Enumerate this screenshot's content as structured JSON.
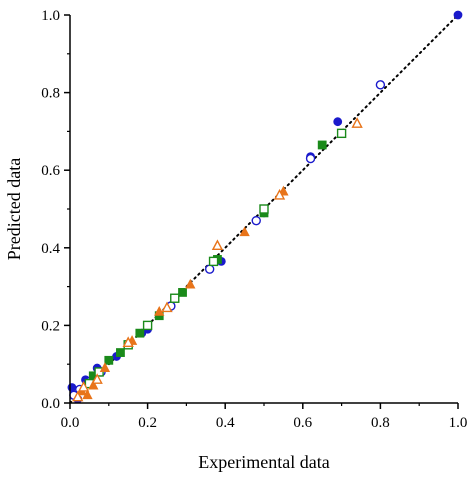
{
  "chart_data": {
    "type": "scatter",
    "title": "",
    "xlabel": "Experimental data",
    "ylabel": "Predicted data",
    "xlim": [
      0,
      1
    ],
    "ylim": [
      0,
      1
    ],
    "xticks": [
      "0.0",
      "0.2",
      "0.4",
      "0.6",
      "0.8",
      "1.0"
    ],
    "yticks": [
      "0.0",
      "0.2",
      "0.4",
      "0.6",
      "0.8",
      "1.0"
    ],
    "grid": false,
    "legend": "none",
    "reference_line": {
      "style": "dotted",
      "color": "#000000",
      "x": [
        0,
        1
      ],
      "y": [
        0,
        1
      ]
    },
    "series": [
      {
        "marker": "circle-filled",
        "color": "#1a1acc",
        "points": [
          [
            0.005,
            0.04
          ],
          [
            0.02,
            0.01
          ],
          [
            0.04,
            0.06
          ],
          [
            0.07,
            0.09
          ],
          [
            0.12,
            0.12
          ],
          [
            0.185,
            0.18
          ],
          [
            0.2,
            0.19
          ],
          [
            0.39,
            0.365
          ],
          [
            0.5,
            0.49
          ],
          [
            0.62,
            0.635
          ],
          [
            0.69,
            0.725
          ],
          [
            1.0,
            1.0
          ]
        ]
      },
      {
        "marker": "circle-open",
        "color": "#1a1acc",
        "points": [
          [
            0.01,
            0.02
          ],
          [
            0.025,
            0.035
          ],
          [
            0.05,
            0.055
          ],
          [
            0.08,
            0.08
          ],
          [
            0.26,
            0.25
          ],
          [
            0.36,
            0.345
          ],
          [
            0.48,
            0.47
          ],
          [
            0.62,
            0.63
          ],
          [
            0.8,
            0.82
          ]
        ]
      },
      {
        "marker": "square-filled",
        "color": "#1a8a1a",
        "points": [
          [
            0.06,
            0.07
          ],
          [
            0.1,
            0.11
          ],
          [
            0.13,
            0.13
          ],
          [
            0.18,
            0.18
          ],
          [
            0.23,
            0.225
          ],
          [
            0.29,
            0.285
          ],
          [
            0.38,
            0.37
          ],
          [
            0.5,
            0.49
          ],
          [
            0.65,
            0.665
          ]
        ]
      },
      {
        "marker": "square-open",
        "color": "#1a8a1a",
        "points": [
          [
            0.05,
            0.05
          ],
          [
            0.075,
            0.08
          ],
          [
            0.15,
            0.15
          ],
          [
            0.2,
            0.2
          ],
          [
            0.27,
            0.27
          ],
          [
            0.37,
            0.365
          ],
          [
            0.5,
            0.5
          ],
          [
            0.7,
            0.695
          ]
        ]
      },
      {
        "marker": "triangle-filled",
        "color": "#e8741a",
        "points": [
          [
            0.03,
            0.03
          ],
          [
            0.045,
            0.02
          ],
          [
            0.06,
            0.045
          ],
          [
            0.09,
            0.09
          ],
          [
            0.16,
            0.16
          ],
          [
            0.23,
            0.235
          ],
          [
            0.31,
            0.305
          ],
          [
            0.45,
            0.44
          ],
          [
            0.55,
            0.545
          ]
        ]
      },
      {
        "marker": "triangle-open",
        "color": "#e8741a",
        "points": [
          [
            0.02,
            0.015
          ],
          [
            0.035,
            0.04
          ],
          [
            0.07,
            0.06
          ],
          [
            0.15,
            0.155
          ],
          [
            0.25,
            0.245
          ],
          [
            0.38,
            0.405
          ],
          [
            0.54,
            0.535
          ],
          [
            0.74,
            0.72
          ]
        ]
      }
    ]
  }
}
